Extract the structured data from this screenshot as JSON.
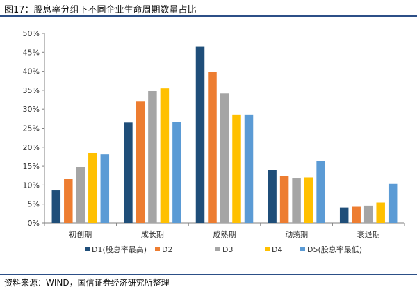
{
  "figure": {
    "title": "图17：股息率分组下不同企业生命周期数量占比",
    "source": "资料来源：WIND，国信证券经济研究所整理"
  },
  "chart_data": {
    "type": "bar",
    "title": "图17：股息率分组下不同企业生命周期数量占比",
    "xlabel": "",
    "ylabel": "",
    "ylim": [
      0,
      50
    ],
    "yticks": [
      0,
      5,
      10,
      15,
      20,
      25,
      30,
      35,
      40,
      45,
      50
    ],
    "ytick_suffix": "%",
    "categories": [
      "初创期",
      "成长期",
      "成熟期",
      "动荡期",
      "衰退期"
    ],
    "series": [
      {
        "name": "D1(股息率最高)",
        "color": "#1f4e79",
        "values": [
          8.6,
          26.5,
          46.6,
          14.1,
          4.1
        ]
      },
      {
        "name": "D2",
        "color": "#ed7d31",
        "values": [
          11.6,
          32.0,
          39.8,
          12.3,
          4.3
        ]
      },
      {
        "name": "D3",
        "color": "#a5a5a5",
        "values": [
          14.7,
          34.8,
          34.2,
          11.9,
          4.6
        ]
      },
      {
        "name": "D4",
        "color": "#ffc000",
        "values": [
          18.5,
          35.5,
          28.6,
          12.0,
          5.4
        ]
      },
      {
        "name": "D5(股息率最低)",
        "color": "#5b9bd5",
        "values": [
          18.1,
          26.7,
          28.6,
          16.3,
          10.3
        ]
      }
    ],
    "grid": false,
    "legend": "bottom"
  }
}
